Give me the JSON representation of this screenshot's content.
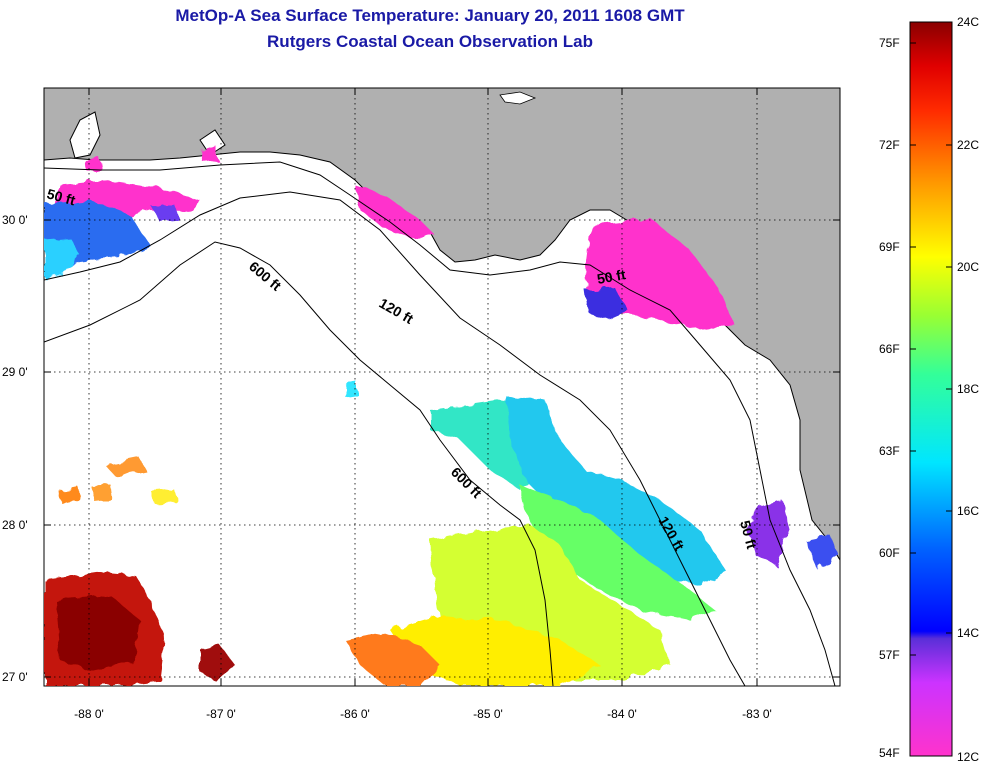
{
  "title": {
    "line1": "MetOp-A Sea Surface Temperature:  January 20, 2011 1608 GMT",
    "line2": "Rutgers Coastal Ocean Observation Lab"
  },
  "map": {
    "lon_ticks": [
      "-88 0'",
      "-87 0'",
      "-86 0'",
      "-85 0'",
      "-84 0'",
      "-83 0'"
    ],
    "lat_ticks": [
      "30 0'",
      "29 0'",
      "28 0'",
      "27 0'"
    ],
    "contour_labels": {
      "c50a": "50 ft",
      "c600a": "600 ft",
      "c120a": "120 ft",
      "c50b": "50 ft",
      "c600b": "600 ft",
      "c120b": "120 ft",
      "c50c": "50 ft"
    },
    "colors": {
      "land": "#b0b0b0",
      "no_data": "#ffffff"
    }
  },
  "colorbar": {
    "fahrenheit": [
      "75F",
      "72F",
      "69F",
      "66F",
      "63F",
      "60F",
      "57F",
      "54F"
    ],
    "celsius": [
      "24C",
      "22C",
      "20C",
      "18C",
      "16C",
      "14C",
      "12C"
    ],
    "range_c": [
      12,
      24
    ],
    "range_f": [
      54,
      75
    ]
  }
}
